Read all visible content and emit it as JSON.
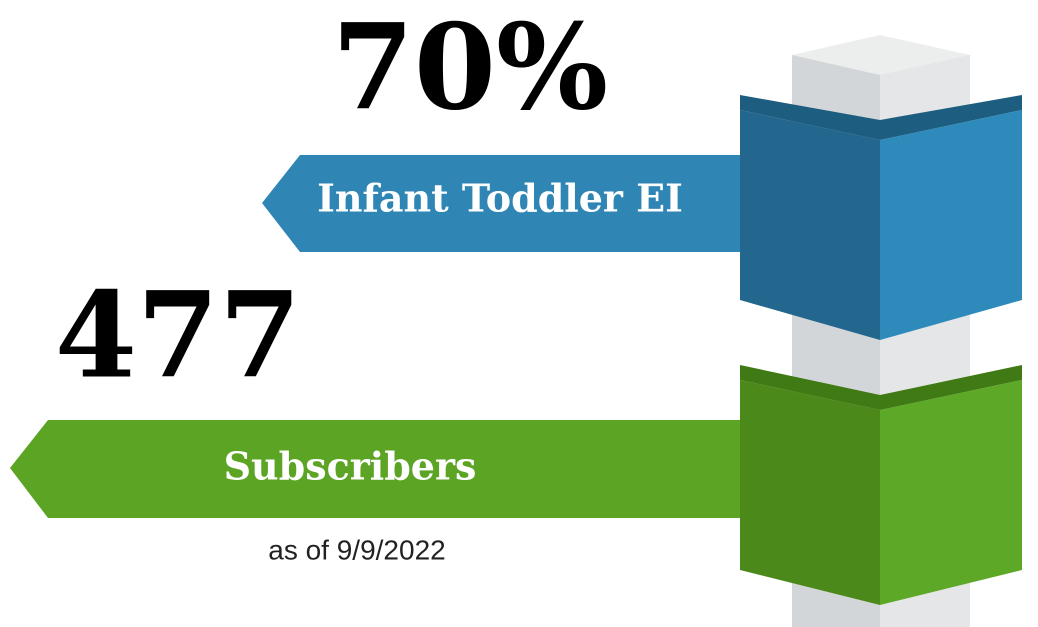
{
  "items": [
    {
      "value": "70%",
      "label": "Infant Toddler EI"
    },
    {
      "value": "477",
      "label": "Subscribers",
      "note": "as of 9/9/2022"
    }
  ]
}
